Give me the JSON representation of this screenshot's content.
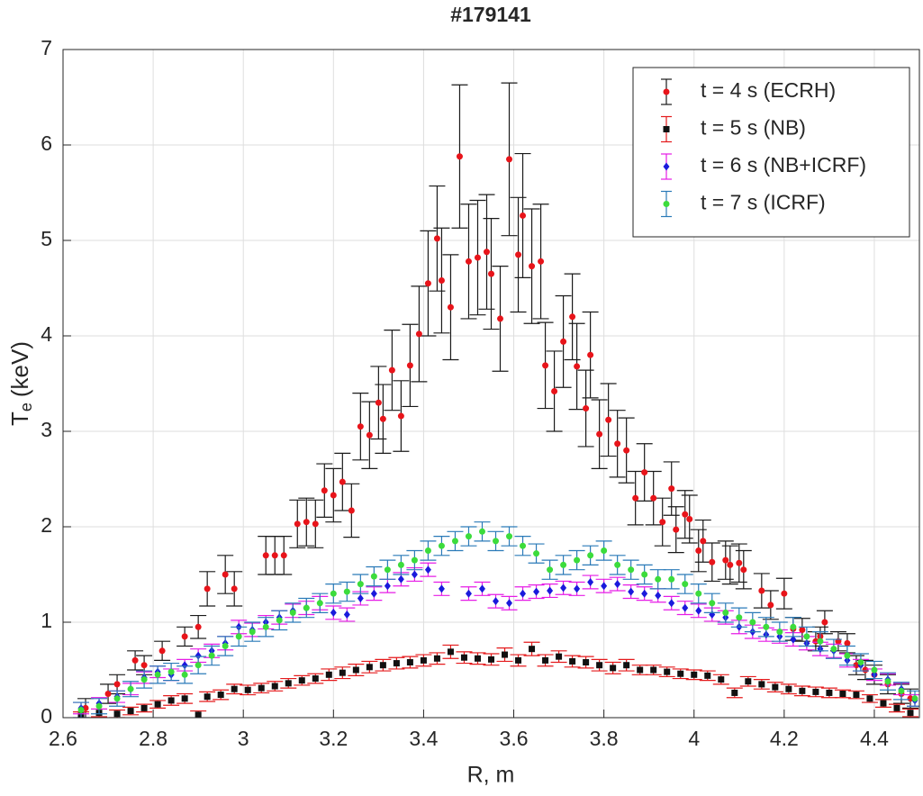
{
  "chart_data": {
    "type": "errorbar",
    "title": "#179141",
    "xlabel": "R, m",
    "ylabel": {
      "symbol": "T",
      "subscript": "e",
      "unit": "(keV)"
    },
    "xlim": [
      2.6,
      4.5
    ],
    "ylim": [
      0,
      7
    ],
    "xticks": [
      2.6,
      2.8,
      3,
      3.2,
      3.4,
      3.6,
      3.8,
      4,
      4.2,
      4.4
    ],
    "yticks": [
      0,
      1,
      2,
      3,
      4,
      5,
      6,
      7
    ],
    "grid": true,
    "legend": "upper right",
    "series": [
      {
        "name": "t = 4 s (ECRH)",
        "color": "#e8141a",
        "error_color": "#1a1a1a",
        "marker": "circle",
        "x": [
          2.65,
          2.7,
          2.72,
          2.76,
          2.78,
          2.82,
          2.87,
          2.9,
          2.92,
          2.96,
          2.98,
          3.05,
          3.07,
          3.09,
          3.12,
          3.14,
          3.16,
          3.18,
          3.2,
          3.22,
          3.24,
          3.26,
          3.28,
          3.3,
          3.31,
          3.33,
          3.35,
          3.37,
          3.39,
          3.41,
          3.43,
          3.44,
          3.46,
          3.48,
          3.5,
          3.52,
          3.54,
          3.55,
          3.57,
          3.59,
          3.61,
          3.62,
          3.64,
          3.66,
          3.67,
          3.69,
          3.71,
          3.73,
          3.74,
          3.76,
          3.77,
          3.79,
          3.81,
          3.83,
          3.85,
          3.87,
          3.89,
          3.91,
          3.93,
          3.95,
          3.96,
          3.98,
          3.99,
          4.01,
          4.02,
          4.04,
          4.07,
          4.08,
          4.1,
          4.11,
          4.15,
          4.17,
          4.2,
          4.22,
          4.24,
          4.27,
          4.28,
          4.29,
          4.32,
          4.34,
          4.36,
          4.38,
          4.4,
          4.43,
          4.46,
          4.48
        ],
        "values": [
          0.1,
          0.25,
          0.35,
          0.6,
          0.55,
          0.7,
          0.85,
          0.95,
          1.35,
          1.5,
          1.35,
          1.7,
          1.7,
          1.7,
          2.03,
          2.05,
          2.03,
          2.38,
          2.33,
          2.47,
          2.17,
          3.05,
          2.96,
          3.3,
          3.13,
          3.64,
          3.16,
          3.69,
          4.02,
          4.55,
          5.02,
          4.58,
          4.3,
          5.88,
          4.78,
          4.82,
          4.88,
          4.65,
          4.18,
          5.85,
          4.85,
          5.26,
          4.73,
          4.78,
          3.69,
          3.42,
          3.94,
          4.2,
          3.68,
          3.24,
          3.8,
          2.97,
          3.12,
          2.87,
          2.8,
          2.3,
          2.57,
          2.3,
          2.05,
          2.4,
          1.97,
          2.13,
          2.08,
          1.75,
          1.85,
          1.63,
          1.65,
          1.6,
          1.62,
          1.55,
          1.33,
          1.18,
          1.3,
          0.93,
          0.92,
          0.8,
          0.85,
          1.0,
          0.8,
          0.78,
          0.55,
          0.5,
          0.45,
          0.35,
          0.25,
          0.2
        ],
        "errors": [
          0.1,
          0.1,
          0.1,
          0.1,
          0.1,
          0.1,
          0.1,
          0.12,
          0.18,
          0.2,
          0.18,
          0.2,
          0.2,
          0.2,
          0.25,
          0.25,
          0.25,
          0.28,
          0.28,
          0.3,
          0.28,
          0.35,
          0.35,
          0.38,
          0.36,
          0.42,
          0.37,
          0.43,
          0.5,
          0.55,
          0.55,
          0.55,
          0.55,
          0.75,
          0.6,
          0.6,
          0.6,
          0.58,
          0.55,
          0.8,
          0.6,
          0.65,
          0.6,
          0.6,
          0.45,
          0.42,
          0.48,
          0.45,
          0.45,
          0.4,
          0.45,
          0.36,
          0.38,
          0.35,
          0.34,
          0.28,
          0.3,
          0.28,
          0.25,
          0.28,
          0.24,
          0.25,
          0.25,
          0.22,
          0.22,
          0.2,
          0.2,
          0.2,
          0.2,
          0.2,
          0.18,
          0.15,
          0.16,
          0.12,
          0.12,
          0.1,
          0.1,
          0.12,
          0.1,
          0.1,
          0.1,
          0.1,
          0.1,
          0.1,
          0.1,
          0.1
        ]
      },
      {
        "name": "t = 5 s (NB)",
        "color": "#111111",
        "error_color": "#e41a1c",
        "marker": "square",
        "x": [
          2.64,
          2.68,
          2.72,
          2.75,
          2.78,
          2.81,
          2.84,
          2.87,
          2.9,
          2.92,
          2.95,
          2.98,
          3.01,
          3.04,
          3.07,
          3.1,
          3.13,
          3.16,
          3.19,
          3.22,
          3.25,
          3.28,
          3.31,
          3.34,
          3.37,
          3.4,
          3.43,
          3.46,
          3.49,
          3.52,
          3.55,
          3.58,
          3.61,
          3.64,
          3.67,
          3.7,
          3.73,
          3.76,
          3.79,
          3.82,
          3.85,
          3.88,
          3.91,
          3.94,
          3.97,
          4.0,
          4.03,
          4.06,
          4.09,
          4.12,
          4.15,
          4.18,
          4.21,
          4.24,
          4.27,
          4.3,
          4.33,
          4.36,
          4.39,
          4.42,
          4.45,
          4.48
        ],
        "values": [
          0.02,
          0.05,
          0.04,
          0.07,
          0.1,
          0.14,
          0.18,
          0.2,
          0.03,
          0.22,
          0.24,
          0.3,
          0.29,
          0.31,
          0.33,
          0.36,
          0.39,
          0.41,
          0.45,
          0.47,
          0.5,
          0.53,
          0.55,
          0.57,
          0.58,
          0.6,
          0.62,
          0.69,
          0.63,
          0.62,
          0.61,
          0.66,
          0.6,
          0.72,
          0.6,
          0.64,
          0.59,
          0.58,
          0.55,
          0.52,
          0.55,
          0.5,
          0.5,
          0.48,
          0.46,
          0.45,
          0.44,
          0.4,
          0.26,
          0.38,
          0.35,
          0.32,
          0.3,
          0.28,
          0.27,
          0.26,
          0.25,
          0.24,
          0.2,
          0.15,
          0.1,
          0.05
        ],
        "errors": [
          0.04,
          0.04,
          0.04,
          0.04,
          0.04,
          0.04,
          0.05,
          0.05,
          0.04,
          0.05,
          0.05,
          0.05,
          0.05,
          0.05,
          0.05,
          0.05,
          0.05,
          0.05,
          0.06,
          0.06,
          0.06,
          0.06,
          0.06,
          0.06,
          0.06,
          0.06,
          0.06,
          0.07,
          0.06,
          0.06,
          0.06,
          0.07,
          0.06,
          0.07,
          0.06,
          0.06,
          0.06,
          0.06,
          0.06,
          0.06,
          0.06,
          0.05,
          0.05,
          0.05,
          0.05,
          0.05,
          0.05,
          0.05,
          0.05,
          0.05,
          0.05,
          0.05,
          0.05,
          0.05,
          0.05,
          0.05,
          0.04,
          0.04,
          0.04,
          0.04,
          0.04,
          0.04
        ]
      },
      {
        "name": "t = 6 s (NB+ICRF)",
        "color": "#1a1adc",
        "error_color": "#e61ce6",
        "marker": "diamond",
        "x": [
          2.64,
          2.68,
          2.72,
          2.75,
          2.78,
          2.81,
          2.84,
          2.87,
          2.9,
          2.93,
          2.96,
          2.99,
          3.02,
          3.05,
          3.08,
          3.11,
          3.14,
          3.17,
          3.2,
          3.23,
          3.26,
          3.29,
          3.32,
          3.35,
          3.38,
          3.41,
          3.44,
          3.5,
          3.53,
          3.56,
          3.59,
          3.62,
          3.65,
          3.68,
          3.71,
          3.74,
          3.77,
          3.8,
          3.83,
          3.86,
          3.89,
          3.92,
          3.95,
          3.98,
          4.01,
          4.04,
          4.07,
          4.1,
          4.13,
          4.16,
          4.19,
          4.22,
          4.25,
          4.28,
          4.31,
          4.34,
          4.37,
          4.4,
          4.43,
          4.46,
          4.49
        ],
        "values": [
          0.1,
          0.15,
          0.22,
          0.3,
          0.42,
          0.48,
          0.45,
          0.55,
          0.65,
          0.7,
          0.78,
          0.95,
          0.92,
          1.0,
          1.05,
          1.12,
          1.15,
          1.2,
          1.1,
          1.08,
          1.25,
          1.3,
          1.38,
          1.45,
          1.5,
          1.55,
          1.35,
          1.3,
          1.35,
          1.22,
          1.2,
          1.3,
          1.32,
          1.33,
          1.36,
          1.35,
          1.42,
          1.38,
          1.4,
          1.32,
          1.3,
          1.28,
          1.2,
          1.15,
          1.12,
          1.08,
          1.05,
          0.95,
          0.9,
          0.87,
          0.85,
          0.82,
          0.78,
          0.72,
          0.7,
          0.6,
          0.55,
          0.45,
          0.4,
          0.3,
          0.18
        ],
        "errors": [
          0.06,
          0.06,
          0.06,
          0.06,
          0.06,
          0.06,
          0.06,
          0.06,
          0.07,
          0.07,
          0.07,
          0.07,
          0.07,
          0.07,
          0.07,
          0.07,
          0.07,
          0.07,
          0.07,
          0.07,
          0.07,
          0.07,
          0.07,
          0.07,
          0.07,
          0.07,
          0.07,
          0.07,
          0.07,
          0.07,
          0.07,
          0.07,
          0.07,
          0.07,
          0.07,
          0.07,
          0.07,
          0.07,
          0.07,
          0.07,
          0.07,
          0.07,
          0.07,
          0.07,
          0.07,
          0.07,
          0.07,
          0.07,
          0.07,
          0.07,
          0.07,
          0.07,
          0.07,
          0.07,
          0.07,
          0.07,
          0.06,
          0.06,
          0.06,
          0.06,
          0.06
        ]
      },
      {
        "name": "t = 7 s (ICRF)",
        "color": "#3cdc3c",
        "error_color": "#2a7ab8",
        "marker": "circle",
        "x": [
          2.64,
          2.68,
          2.72,
          2.75,
          2.78,
          2.81,
          2.84,
          2.87,
          2.9,
          2.93,
          2.96,
          2.99,
          3.02,
          3.05,
          3.08,
          3.11,
          3.14,
          3.17,
          3.2,
          3.23,
          3.26,
          3.29,
          3.32,
          3.35,
          3.38,
          3.41,
          3.44,
          3.47,
          3.5,
          3.53,
          3.56,
          3.59,
          3.62,
          3.65,
          3.68,
          3.71,
          3.74,
          3.77,
          3.8,
          3.83,
          3.86,
          3.89,
          3.92,
          3.95,
          3.98,
          4.01,
          4.04,
          4.07,
          4.1,
          4.13,
          4.16,
          4.19,
          4.22,
          4.25,
          4.28,
          4.31,
          4.34,
          4.37,
          4.4,
          4.43,
          4.46,
          4.49
        ],
        "values": [
          0.08,
          0.12,
          0.2,
          0.3,
          0.4,
          0.45,
          0.48,
          0.45,
          0.55,
          0.65,
          0.75,
          0.85,
          0.9,
          0.95,
          1.02,
          1.1,
          1.15,
          1.2,
          1.3,
          1.32,
          1.4,
          1.48,
          1.55,
          1.6,
          1.65,
          1.75,
          1.8,
          1.85,
          1.9,
          1.95,
          1.85,
          1.9,
          1.8,
          1.72,
          1.55,
          1.6,
          1.65,
          1.7,
          1.75,
          1.6,
          1.55,
          1.5,
          1.45,
          1.45,
          1.4,
          1.3,
          1.2,
          1.1,
          1.05,
          1.0,
          0.95,
          0.9,
          0.95,
          0.85,
          0.8,
          0.72,
          0.65,
          0.58,
          0.5,
          0.38,
          0.28,
          0.2
        ],
        "errors": [
          0.08,
          0.08,
          0.08,
          0.08,
          0.09,
          0.09,
          0.09,
          0.09,
          0.09,
          0.1,
          0.1,
          0.1,
          0.1,
          0.1,
          0.1,
          0.1,
          0.1,
          0.1,
          0.1,
          0.1,
          0.1,
          0.1,
          0.1,
          0.1,
          0.1,
          0.1,
          0.1,
          0.1,
          0.1,
          0.1,
          0.1,
          0.1,
          0.1,
          0.1,
          0.1,
          0.1,
          0.1,
          0.1,
          0.1,
          0.1,
          0.1,
          0.1,
          0.1,
          0.1,
          0.1,
          0.1,
          0.1,
          0.1,
          0.1,
          0.1,
          0.1,
          0.1,
          0.1,
          0.1,
          0.1,
          0.1,
          0.1,
          0.09,
          0.09,
          0.09,
          0.09,
          0.08
        ]
      }
    ]
  }
}
